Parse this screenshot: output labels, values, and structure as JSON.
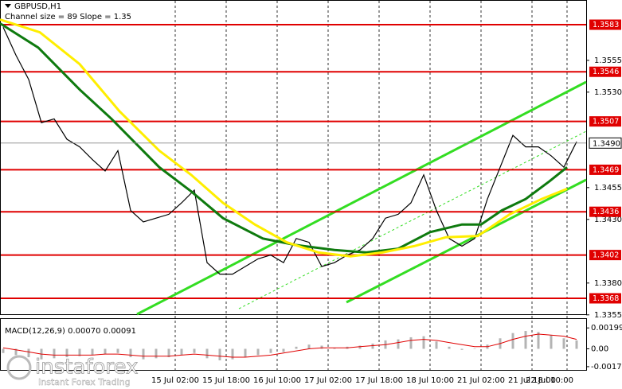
{
  "brand": {
    "name": "instaforex",
    "tagline": "Instant Forex Trading"
  },
  "chart_data": [
    {
      "type": "line",
      "title": "GBPUSD,H1",
      "subtitle": "Channel size = 89 Slope = 1.35",
      "x": [
        0,
        4,
        8,
        12,
        16,
        20,
        24,
        28,
        32,
        36,
        40,
        44,
        48,
        52,
        56,
        60,
        64,
        68,
        72,
        76,
        80,
        84,
        88,
        92,
        96,
        100,
        104,
        108,
        112,
        116,
        120,
        124,
        128,
        132,
        136,
        140,
        144,
        148,
        152,
        156,
        160,
        164,
        168,
        172,
        176,
        180
      ],
      "xlim": [
        -1,
        183
      ],
      "xticks": [
        {
          "value": 54,
          "label": "15 Jul 02:00"
        },
        {
          "value": 70,
          "label": "15 Jul 18:00"
        },
        {
          "value": 86,
          "label": "16 Jul 10:00"
        },
        {
          "value": 102,
          "label": "17 Jul 02:00"
        },
        {
          "value": 118,
          "label": "17 Jul 18:00"
        },
        {
          "value": 134,
          "label": "18 Jul 10:00"
        },
        {
          "value": 150,
          "label": "21 Jul 02:00"
        },
        {
          "value": 166,
          "label": "21 Jul 18:00"
        },
        {
          "value": 177,
          "label": "22 Jul 10:00"
        }
      ],
      "ylim": [
        1.33555,
        1.36024
      ],
      "yticks": [
        1.3355,
        {
          "value": 1.338,
          "label": "1.3380"
        },
        {
          "value": 1.343,
          "label": "1.3430"
        },
        1.3455,
        {
          "value": 1.353,
          "label": "1.3530"
        },
        1.3555
      ],
      "series": [
        {
          "color": "#000000",
          "values": [
            1.3581,
            1.3559,
            1.354,
            1.3506,
            1.3509,
            1.3493,
            1.3487,
            1.3477,
            1.3468,
            1.3484,
            1.3437,
            1.3428,
            1.3431,
            1.3434,
            1.3443,
            1.3453,
            1.3396,
            1.3387,
            1.3387,
            1.3393,
            1.3399,
            1.3402,
            1.3396,
            1.3415,
            1.3412,
            1.3393,
            1.3396,
            1.3402,
            1.3406,
            1.3415,
            1.3431,
            1.3434,
            1.3443,
            1.3465,
            1.3437,
            1.3415,
            1.3409,
            1.3415,
            1.3446,
            1.3471,
            1.3496,
            1.3487,
            1.3487,
            1.348,
            1.3471,
            1.3491
          ]
        },
        {
          "color": "#0e7a0e",
          "x": [
            -1,
            11,
            24,
            34,
            49,
            59,
            69,
            81.5,
            91.5,
            104,
            114,
            124,
            134,
            144,
            150,
            156.5,
            164,
            171.5,
            177
          ],
          "values": [
            1.3584,
            1.3565,
            1.3532,
            1.3509,
            1.3471,
            1.3452,
            1.3431,
            1.3415,
            1.341,
            1.3406,
            1.3404,
            1.3407,
            1.342,
            1.3426,
            1.3426,
            1.3437,
            1.3446,
            1.346,
            1.3471
          ]
        },
        {
          "color": "#ffee00",
          "x": [
            -1,
            11.5,
            24,
            36.5,
            49,
            59,
            69,
            79,
            89,
            99,
            109,
            119,
            129,
            139,
            149,
            159,
            169,
            177
          ],
          "values": [
            1.3587,
            1.3577,
            1.3552,
            1.3515,
            1.3484,
            1.3465,
            1.3443,
            1.3426,
            1.3412,
            1.3404,
            1.3401,
            1.3404,
            1.3409,
            1.3416,
            1.3417,
            1.3434,
            1.3446,
            1.3454
          ]
        }
      ],
      "levels": [
        1.3583,
        1.3546,
        1.3507,
        1.3469,
        1.3436,
        1.3402,
        1.3368
      ],
      "level_color": "#e00000",
      "current_price": {
        "value": 1.349,
        "label": "1.3490"
      }
    },
    {
      "type": "bar",
      "title": "MACD(12,26,9) 0.00070 0.00091",
      "x": [
        0,
        4,
        8,
        12,
        16,
        20,
        24,
        28,
        32,
        36,
        40,
        44,
        48,
        52,
        56,
        60,
        64,
        68,
        72,
        76,
        80,
        84,
        88,
        92,
        96,
        100,
        104,
        108,
        112,
        116,
        120,
        124,
        128,
        132,
        136,
        140,
        144,
        148,
        152,
        156,
        160,
        164,
        168,
        172,
        176,
        180
      ],
      "xlim": [
        -1,
        183
      ],
      "values": [
        -0.0004,
        -0.0006,
        -0.0008,
        -0.001,
        -0.0009,
        -0.0008,
        -0.0007,
        -0.0006,
        -0.0005,
        -0.0004,
        -0.0008,
        -0.001,
        -0.0009,
        -0.0008,
        -0.0006,
        -0.0004,
        -0.0009,
        -0.0011,
        -0.001,
        -0.0008,
        -0.0006,
        -0.0004,
        -0.0003,
        0.0002,
        0.0004,
        0.0003,
        0.0001,
        0.0002,
        0.0003,
        0.0005,
        0.0008,
        0.0009,
        0.0011,
        0.0012,
        0.0007,
        0.0002,
        -0.0001,
        0,
        0.0004,
        0.001,
        0.0015,
        0.0017,
        0.0016,
        0.0013,
        0.001,
        0.0008
      ],
      "color": "#b4b4b4",
      "series": [
        {
          "color": "#e00000",
          "values": [
            0.0001,
            -0.0001,
            -0.0003,
            -0.0005,
            -0.0006,
            -0.0006,
            -0.0006,
            -0.0006,
            -0.0005,
            -0.0005,
            -0.0006,
            -0.0007,
            -0.0007,
            -0.0007,
            -0.0006,
            -0.0005,
            -0.0006,
            -0.0007,
            -0.0008,
            -0.0008,
            -0.0007,
            -0.0006,
            -0.0004,
            -0.0002,
            0,
            0.0001,
            0.0001,
            0.0001,
            0.0002,
            0.0003,
            0.0004,
            0.0006,
            0.0008,
            0.0009,
            0.0008,
            0.0006,
            0.0004,
            0.0002,
            0.0002,
            0.0005,
            0.0009,
            0.0012,
            0.0014,
            0.0013,
            0.0012,
            0.0009
          ]
        }
      ],
      "ylim": [
        -0.00201,
        0.00284
      ],
      "yticks": [
        0.00199,
        {
          "value": 0,
          "label": "0.00"
        },
        {
          "value": -0.0017,
          "label": "-0.00170"
        }
      ]
    }
  ]
}
